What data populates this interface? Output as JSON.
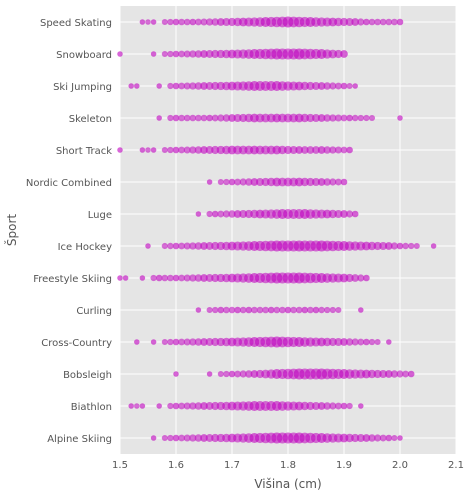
{
  "chart_data": {
    "type": "scatter",
    "title": "",
    "xlabel": "Višina (cm)",
    "ylabel": "Šport",
    "xlim": [
      1.5,
      2.1
    ],
    "xticks": [
      "1.5",
      "1.6",
      "1.7",
      "1.8",
      "1.9",
      "2.0",
      "2.1"
    ],
    "categories": [
      "Speed Skating",
      "Snowboard",
      "Ski Jumping",
      "Skeleton",
      "Short Track",
      "Nordic Combined",
      "Luge",
      "Ice Hockey",
      "Freestyle Skiing",
      "Curling",
      "Cross-Country",
      "Bobsleigh",
      "Biathlon",
      "Alpine Skiing"
    ],
    "grid": true,
    "marker_color": "#bf00bf",
    "background_color": "#e5e5e5",
    "series": [
      {
        "category": "Speed Skating",
        "min": 1.54,
        "max": 2.0,
        "points": [
          [
            1.54,
            1
          ],
          [
            1.56,
            1
          ],
          [
            1.6,
            2
          ],
          [
            1.63,
            2
          ],
          [
            1.68,
            3
          ],
          [
            1.72,
            4
          ],
          [
            1.76,
            5
          ],
          [
            1.8,
            6
          ],
          [
            1.84,
            5
          ],
          [
            1.88,
            4
          ],
          [
            1.92,
            3
          ],
          [
            1.94,
            2
          ],
          [
            2.0,
            2
          ]
        ]
      },
      {
        "category": "Snowboard",
        "min": 1.5,
        "max": 1.9,
        "points": [
          [
            1.5,
            1
          ],
          [
            1.56,
            1
          ],
          [
            1.6,
            2
          ],
          [
            1.65,
            3
          ],
          [
            1.7,
            4
          ],
          [
            1.74,
            5
          ],
          [
            1.78,
            6
          ],
          [
            1.82,
            6
          ],
          [
            1.86,
            5
          ],
          [
            1.9,
            3
          ]
        ]
      },
      {
        "category": "Ski Jumping",
        "min": 1.52,
        "max": 1.92,
        "points": [
          [
            1.52,
            1
          ],
          [
            1.53,
            1
          ],
          [
            1.57,
            1
          ],
          [
            1.6,
            2
          ],
          [
            1.65,
            3
          ],
          [
            1.7,
            4
          ],
          [
            1.74,
            5
          ],
          [
            1.78,
            5
          ],
          [
            1.82,
            4
          ],
          [
            1.86,
            3
          ],
          [
            1.9,
            2
          ],
          [
            1.92,
            1
          ]
        ]
      },
      {
        "category": "Skeleton",
        "min": 1.57,
        "max": 2.0,
        "points": [
          [
            1.57,
            1
          ],
          [
            1.6,
            2
          ],
          [
            1.66,
            2
          ],
          [
            1.7,
            3
          ],
          [
            1.74,
            4
          ],
          [
            1.78,
            4
          ],
          [
            1.82,
            4
          ],
          [
            1.86,
            3
          ],
          [
            1.91,
            2
          ],
          [
            2.0,
            1
          ]
        ]
      },
      {
        "category": "Short Track",
        "min": 1.5,
        "max": 1.91,
        "points": [
          [
            1.5,
            1
          ],
          [
            1.54,
            1
          ],
          [
            1.56,
            1
          ],
          [
            1.6,
            2
          ],
          [
            1.65,
            3
          ],
          [
            1.7,
            4
          ],
          [
            1.74,
            4
          ],
          [
            1.78,
            4
          ],
          [
            1.82,
            3
          ],
          [
            1.86,
            3
          ],
          [
            1.91,
            2
          ]
        ]
      },
      {
        "category": "Nordic Combined",
        "min": 1.66,
        "max": 1.9,
        "points": [
          [
            1.66,
            1
          ],
          [
            1.7,
            2
          ],
          [
            1.74,
            3
          ],
          [
            1.78,
            4
          ],
          [
            1.82,
            4
          ],
          [
            1.86,
            3
          ],
          [
            1.9,
            2
          ]
        ]
      },
      {
        "category": "Luge",
        "min": 1.64,
        "max": 1.92,
        "points": [
          [
            1.64,
            1
          ],
          [
            1.67,
            2
          ],
          [
            1.71,
            3
          ],
          [
            1.75,
            4
          ],
          [
            1.79,
            5
          ],
          [
            1.83,
            5
          ],
          [
            1.87,
            4
          ],
          [
            1.9,
            3
          ],
          [
            1.92,
            2
          ]
        ]
      },
      {
        "category": "Ice Hockey",
        "min": 1.55,
        "max": 2.06,
        "points": [
          [
            1.55,
            1
          ],
          [
            1.6,
            2
          ],
          [
            1.65,
            3
          ],
          [
            1.7,
            4
          ],
          [
            1.74,
            5
          ],
          [
            1.78,
            6
          ],
          [
            1.82,
            6
          ],
          [
            1.86,
            6
          ],
          [
            1.9,
            5
          ],
          [
            1.94,
            4
          ],
          [
            1.98,
            3
          ],
          [
            2.0,
            2
          ],
          [
            2.06,
            1
          ]
        ]
      },
      {
        "category": "Freestyle Skiing",
        "min": 1.5,
        "max": 1.94,
        "points": [
          [
            1.5,
            1
          ],
          [
            1.51,
            1
          ],
          [
            1.54,
            1
          ],
          [
            1.57,
            2
          ],
          [
            1.6,
            2
          ],
          [
            1.65,
            3
          ],
          [
            1.7,
            4
          ],
          [
            1.74,
            5
          ],
          [
            1.78,
            6
          ],
          [
            1.82,
            6
          ],
          [
            1.86,
            5
          ],
          [
            1.9,
            4
          ],
          [
            1.94,
            2
          ]
        ]
      },
      {
        "category": "Curling",
        "min": 1.64,
        "max": 1.93,
        "points": [
          [
            1.64,
            1
          ],
          [
            1.68,
            2
          ],
          [
            1.71,
            2
          ],
          [
            1.73,
            2
          ],
          [
            1.77,
            2
          ],
          [
            1.8,
            2
          ],
          [
            1.83,
            2
          ],
          [
            1.85,
            2
          ],
          [
            1.93,
            1
          ]
        ]
      },
      {
        "category": "Cross-Country",
        "min": 1.53,
        "max": 1.98,
        "points": [
          [
            1.53,
            1
          ],
          [
            1.56,
            1
          ],
          [
            1.6,
            2
          ],
          [
            1.65,
            3
          ],
          [
            1.7,
            4
          ],
          [
            1.74,
            5
          ],
          [
            1.78,
            6
          ],
          [
            1.82,
            5
          ],
          [
            1.86,
            4
          ],
          [
            1.9,
            3
          ],
          [
            1.94,
            2
          ],
          [
            1.98,
            1
          ]
        ]
      },
      {
        "category": "Bobsleigh",
        "min": 1.6,
        "max": 2.02,
        "points": [
          [
            1.6,
            1
          ],
          [
            1.66,
            1
          ],
          [
            1.7,
            2
          ],
          [
            1.74,
            3
          ],
          [
            1.78,
            5
          ],
          [
            1.82,
            6
          ],
          [
            1.86,
            6
          ],
          [
            1.9,
            5
          ],
          [
            1.94,
            4
          ],
          [
            1.98,
            3
          ],
          [
            2.02,
            2
          ]
        ]
      },
      {
        "category": "Biathlon",
        "min": 1.52,
        "max": 1.93,
        "points": [
          [
            1.52,
            1
          ],
          [
            1.54,
            1
          ],
          [
            1.57,
            1
          ],
          [
            1.6,
            2
          ],
          [
            1.65,
            3
          ],
          [
            1.7,
            4
          ],
          [
            1.74,
            5
          ],
          [
            1.78,
            5
          ],
          [
            1.82,
            4
          ],
          [
            1.86,
            3
          ],
          [
            1.9,
            2
          ],
          [
            1.93,
            1
          ]
        ]
      },
      {
        "category": "Alpine Skiing",
        "min": 1.56,
        "max": 2.0,
        "points": [
          [
            1.56,
            1
          ],
          [
            1.6,
            2
          ],
          [
            1.65,
            3
          ],
          [
            1.7,
            4
          ],
          [
            1.74,
            5
          ],
          [
            1.78,
            6
          ],
          [
            1.82,
            6
          ],
          [
            1.86,
            5
          ],
          [
            1.9,
            4
          ],
          [
            1.94,
            3
          ],
          [
            1.98,
            2
          ],
          [
            2.0,
            1
          ]
        ]
      }
    ]
  }
}
